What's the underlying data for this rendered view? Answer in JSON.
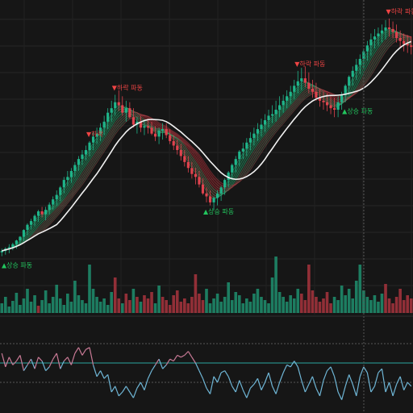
{
  "chart_data": [
    {
      "type": "line",
      "panel": "price",
      "series": [
        {
          "kind": "candles",
          "open": [
            3,
            5,
            8,
            10,
            14,
            19,
            24,
            33,
            40,
            45,
            52,
            58,
            54,
            60,
            67,
            74,
            80,
            90,
            100,
            104,
            112,
            120,
            128,
            134,
            140,
            150,
            158,
            162,
            170,
            178,
            190,
            196,
            204,
            200,
            190,
            196,
            184,
            174,
            178,
            170,
            172,
            170,
            162,
            158,
            166,
            168,
            160,
            152,
            146,
            140,
            132,
            124,
            116,
            108,
            104,
            94,
            82,
            78,
            70,
            76,
            82,
            90,
            100,
            110,
            120,
            128,
            138,
            142,
            150,
            156,
            162,
            168,
            174,
            180,
            186,
            188,
            194,
            200,
            206,
            212,
            218,
            226,
            232,
            236,
            230,
            222,
            218,
            210,
            206,
            204,
            200,
            196,
            194,
            204,
            214,
            226,
            238,
            246,
            254,
            262,
            272,
            280,
            288,
            292,
            296,
            300,
            304,
            302,
            298,
            290,
            286,
            282,
            280
          ],
          "high": [
            8,
            10,
            14,
            16,
            20,
            25,
            34,
            42,
            48,
            54,
            60,
            64,
            64,
            70,
            78,
            86,
            92,
            104,
            112,
            116,
            124,
            132,
            140,
            146,
            152,
            164,
            170,
            176,
            186,
            196,
            206,
            214,
            220,
            212,
            206,
            204,
            196,
            184,
            186,
            180,
            182,
            178,
            172,
            170,
            176,
            176,
            168,
            160,
            154,
            148,
            140,
            132,
            124,
            116,
            112,
            102,
            90,
            86,
            78,
            86,
            92,
            102,
            112,
            122,
            132,
            140,
            150,
            156,
            164,
            170,
            176,
            182,
            188,
            194,
            200,
            206,
            212,
            214,
            220,
            226,
            234,
            246,
            250,
            252,
            244,
            234,
            230,
            222,
            218,
            216,
            212,
            210,
            212,
            218,
            228,
            240,
            252,
            262,
            268,
            276,
            286,
            296,
            302,
            304,
            308,
            314,
            316,
            312,
            308,
            300,
            296,
            294,
            292
          ],
          "low": [
            -2,
            0,
            2,
            6,
            8,
            14,
            18,
            26,
            34,
            38,
            44,
            50,
            46,
            54,
            60,
            66,
            72,
            82,
            92,
            96,
            104,
            112,
            120,
            126,
            132,
            140,
            148,
            152,
            160,
            168,
            178,
            186,
            192,
            186,
            178,
            182,
            170,
            162,
            164,
            160,
            162,
            160,
            152,
            148,
            154,
            156,
            148,
            140,
            134,
            126,
            118,
            110,
            102,
            94,
            90,
            80,
            70,
            66,
            60,
            66,
            72,
            80,
            90,
            100,
            110,
            118,
            128,
            132,
            140,
            146,
            152,
            158,
            164,
            170,
            176,
            178,
            184,
            190,
            196,
            202,
            208,
            216,
            220,
            224,
            216,
            210,
            206,
            198,
            194,
            192,
            188,
            184,
            184,
            194,
            204,
            214,
            226,
            234,
            242,
            250,
            260,
            266,
            276,
            280,
            284,
            288,
            292,
            290,
            284,
            278,
            272,
            270,
            268
          ],
          "close": [
            5,
            8,
            10,
            14,
            19,
            24,
            33,
            40,
            45,
            52,
            58,
            54,
            60,
            67,
            74,
            80,
            90,
            100,
            104,
            112,
            120,
            128,
            134,
            140,
            150,
            158,
            162,
            170,
            178,
            190,
            196,
            204,
            200,
            190,
            196,
            184,
            174,
            178,
            170,
            172,
            170,
            162,
            158,
            166,
            168,
            160,
            152,
            146,
            140,
            132,
            124,
            116,
            108,
            104,
            94,
            82,
            78,
            70,
            76,
            82,
            90,
            100,
            110,
            120,
            128,
            138,
            142,
            150,
            156,
            162,
            168,
            174,
            180,
            186,
            188,
            194,
            200,
            206,
            212,
            218,
            226,
            232,
            236,
            230,
            222,
            218,
            210,
            206,
            204,
            200,
            196,
            194,
            204,
            214,
            226,
            238,
            246,
            254,
            262,
            272,
            280,
            288,
            292,
            296,
            300,
            304,
            302,
            298,
            290,
            286,
            282,
            280,
            278
          ]
        }
      ],
      "signals": [
        {
          "label": "▲상승 파동",
          "index": 0,
          "color": "#22c55e"
        },
        {
          "label": "▼하락",
          "index": 24,
          "color": "#ef4444"
        },
        {
          "label": "▼하락 파동",
          "index": 31,
          "color": "#ef4444"
        },
        {
          "label": "▲상승 파동",
          "index": 56,
          "color": "#22c55e"
        },
        {
          "label": "▼하락 파동",
          "index": 81,
          "color": "#ef4444"
        },
        {
          "label": "▲상승 파동",
          "index": 94,
          "color": "#22c55e"
        },
        {
          "label": "▼하락 파동",
          "index": 106,
          "color": "#ef4444"
        }
      ],
      "grid": true
    },
    {
      "type": "bar",
      "panel": "volume",
      "values": [
        12,
        20,
        8,
        15,
        25,
        10,
        18,
        30,
        14,
        22,
        9,
        16,
        28,
        12,
        20,
        35,
        18,
        10,
        24,
        14,
        40,
        22,
        16,
        12,
        60,
        30,
        20,
        14,
        18,
        10,
        26,
        44,
        18,
        12,
        24,
        16,
        30,
        20,
        14,
        22,
        18,
        26,
        12,
        34,
        20,
        16,
        10,
        22,
        28,
        14,
        18,
        12,
        20,
        48,
        24,
        16,
        30,
        12,
        18,
        24,
        14,
        20,
        38,
        16,
        26,
        22,
        12,
        18,
        14,
        24,
        30,
        20,
        16,
        12,
        44,
        70,
        26,
        20,
        14,
        22,
        18,
        30,
        24,
        16,
        60,
        28,
        20,
        14,
        18,
        26,
        12,
        20,
        16,
        34,
        22,
        30,
        18,
        40,
        60,
        28,
        20,
        16,
        22,
        14,
        24,
        36,
        18,
        12,
        20,
        30,
        16,
        22,
        18
      ],
      "up": [
        true,
        true,
        true,
        true,
        true,
        true,
        true,
        true,
        true,
        true,
        false,
        true,
        true,
        true,
        true,
        true,
        true,
        true,
        true,
        true,
        true,
        true,
        true,
        true,
        true,
        true,
        true,
        true,
        true,
        true,
        true,
        false,
        false,
        true,
        false,
        false,
        true,
        false,
        true,
        false,
        false,
        false,
        true,
        true,
        false,
        false,
        false,
        false,
        false,
        false,
        false,
        false,
        false,
        false,
        false,
        false,
        true,
        true,
        true,
        true,
        true,
        true,
        true,
        true,
        true,
        true,
        true,
        true,
        true,
        true,
        true,
        true,
        true,
        true,
        true,
        true,
        true,
        true,
        true,
        true,
        true,
        true,
        false,
        false,
        false,
        false,
        false,
        false,
        false,
        false,
        false,
        true,
        true,
        true,
        true,
        true,
        true,
        true,
        true,
        true,
        true,
        true,
        true,
        true,
        true,
        false,
        false,
        false,
        false,
        false,
        false,
        false,
        false
      ]
    },
    {
      "type": "line",
      "panel": "oscillator",
      "series": [
        {
          "name": "",
          "values": [
            10,
            -4,
            6,
            -2,
            2,
            8,
            -8,
            -2,
            4,
            -6,
            6,
            2,
            -8,
            -4,
            4,
            10,
            -6,
            2,
            6,
            -2,
            10,
            16,
            8,
            14,
            16,
            -2,
            -14,
            -8,
            -16,
            -12,
            -30,
            -24,
            -34,
            -30,
            -24,
            -30,
            -36,
            -26,
            -20,
            -28,
            -16,
            -8,
            -2,
            4,
            -6,
            -2,
            4,
            2,
            8,
            6,
            8,
            12,
            6,
            0,
            -8,
            -16,
            -26,
            -32,
            -14,
            -20,
            -10,
            -8,
            -14,
            -24,
            -30,
            -18,
            -28,
            -36,
            -26,
            -22,
            -16,
            -28,
            -20,
            -10,
            -24,
            -32,
            -20,
            -10,
            -2,
            -4,
            2,
            -4,
            -18,
            -30,
            -22,
            -14,
            -26,
            -34,
            -18,
            -8,
            -4,
            -14,
            -30,
            -38,
            -24,
            -12,
            -22,
            -34,
            -14,
            -4,
            -10,
            -30,
            -24,
            -10,
            -6,
            -30,
            -20,
            -34,
            -22,
            -14,
            -28,
            -20,
            -24
          ]
        }
      ],
      "reference_lines": [
        20,
        0,
        -20
      ]
    }
  ]
}
